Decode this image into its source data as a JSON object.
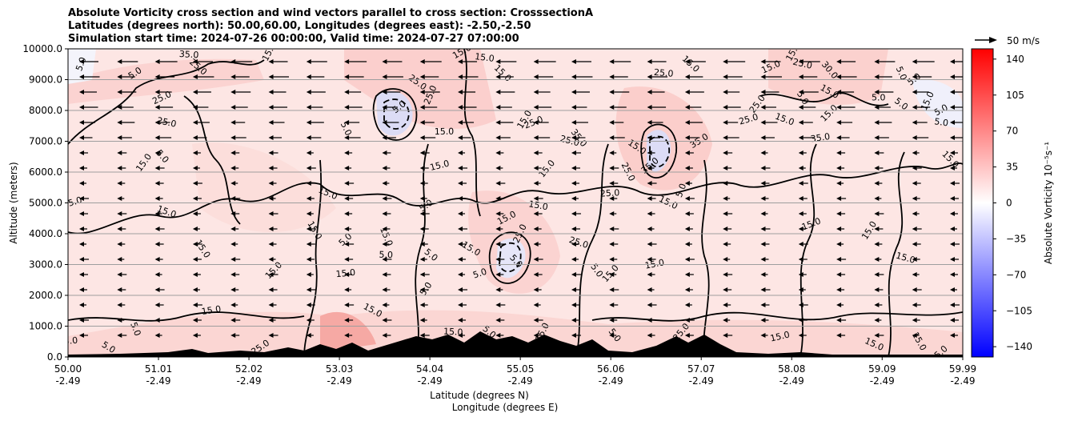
{
  "chart_data": {
    "type": "heatmap",
    "title_lines": [
      "Absolute Vorticity cross section and wind vectors parallel to cross section: CrosssectionA",
      "Latitudes (degrees north): 50.00,60.00, Longitudes (degrees east): -2.50,-2.50",
      "Simulation start time: 2024-07-26 00:00:00, Valid time: 2024-07-27 07:00:00"
    ],
    "ylabel": "Altitude (meters)",
    "xlabel_line1": "Latitude (degrees N)",
    "xlabel_line2": "Longitude (degrees E)",
    "ylim": [
      0,
      10000
    ],
    "yticks": [
      "0.0",
      "1000.0",
      "2000.0",
      "3000.0",
      "4000.0",
      "5000.0",
      "6000.0",
      "7000.0",
      "8000.0",
      "9000.0",
      "10000.0"
    ],
    "ytick_values": [
      0,
      1000,
      2000,
      3000,
      4000,
      5000,
      6000,
      7000,
      8000,
      9000,
      10000
    ],
    "xlim": [
      50.0,
      59.99
    ],
    "xticks": [
      {
        "value": 50.0,
        "lat": "50.00",
        "lon": "-2.49"
      },
      {
        "value": 51.01,
        "lat": "51.01",
        "lon": "-2.49"
      },
      {
        "value": 52.02,
        "lat": "52.02",
        "lon": "-2.49"
      },
      {
        "value": 53.03,
        "lat": "53.03",
        "lon": "-2.49"
      },
      {
        "value": 54.04,
        "lat": "54.04",
        "lon": "-2.49"
      },
      {
        "value": 55.05,
        "lat": "55.05",
        "lon": "-2.49"
      },
      {
        "value": 56.06,
        "lat": "56.06",
        "lon": "-2.49"
      },
      {
        "value": 57.07,
        "lat": "57.07",
        "lon": "-2.49"
      },
      {
        "value": 58.08,
        "lat": "58.08",
        "lon": "-2.49"
      },
      {
        "value": 59.09,
        "lat": "59.09",
        "lon": "-2.49"
      },
      {
        "value": 59.99,
        "lat": "59.99",
        "lon": "-2.49"
      }
    ],
    "grid": "horizontal",
    "colorbar": {
      "label": "Absolute Vorticity 10⁻⁵s⁻¹",
      "range": [
        -150,
        150
      ],
      "ticks": [
        "140",
        "105",
        "70",
        "35",
        "0",
        "−35",
        "−70",
        "−105",
        "−140"
      ],
      "tick_values": [
        140,
        105,
        70,
        35,
        0,
        -35,
        -70,
        -105,
        -140
      ],
      "low_color": "#0000ff",
      "mid_color": "#ffffff",
      "high_color": "#ff0000"
    },
    "quiver_key": "50 m/s",
    "contour_labels": [
      {
        "text": "5.0",
        "x": 50.15,
        "y": 9500
      },
      {
        "text": "5.0",
        "x": 50.75,
        "y": 9200
      },
      {
        "text": "35.0",
        "x": 51.35,
        "y": 9800
      },
      {
        "text": "25.0",
        "x": 51.45,
        "y": 9400
      },
      {
        "text": "15.0",
        "x": 52.25,
        "y": 9900
      },
      {
        "text": "25.0",
        "x": 51.05,
        "y": 8400
      },
      {
        "text": "25.0",
        "x": 51.1,
        "y": 7600
      },
      {
        "text": "5.0",
        "x": 51.05,
        "y": 6500
      },
      {
        "text": "15.0",
        "x": 50.85,
        "y": 6300
      },
      {
        "text": "15.0",
        "x": 50.05,
        "y": 5000
      },
      {
        "text": "15.0",
        "x": 51.1,
        "y": 4700
      },
      {
        "text": "15.0",
        "x": 51.5,
        "y": 3500
      },
      {
        "text": "15.0",
        "x": 52.3,
        "y": 2800
      },
      {
        "text": "15.0",
        "x": 51.6,
        "y": 1500
      },
      {
        "text": "15.0",
        "x": 53.4,
        "y": 1500
      },
      {
        "text": "5.0",
        "x": 53.1,
        "y": 7400
      },
      {
        "text": "5.0",
        "x": 53.7,
        "y": 8100
      },
      {
        "text": "15.0",
        "x": 54.2,
        "y": 7300
      },
      {
        "text": "25.0",
        "x": 53.9,
        "y": 8900
      },
      {
        "text": "25.0",
        "x": 54.05,
        "y": 8500
      },
      {
        "text": "15.0",
        "x": 54.4,
        "y": 9900
      },
      {
        "text": "15.0",
        "x": 54.65,
        "y": 9700
      },
      {
        "text": "15.0",
        "x": 54.85,
        "y": 9200
      },
      {
        "text": "15.0",
        "x": 55.1,
        "y": 7700
      },
      {
        "text": "25.0",
        "x": 55.2,
        "y": 7600
      },
      {
        "text": "25.0",
        "x": 55.6,
        "y": 7000
      },
      {
        "text": "35.0",
        "x": 55.7,
        "y": 7100
      },
      {
        "text": "15.0",
        "x": 55.35,
        "y": 6100
      },
      {
        "text": "15.0",
        "x": 54.15,
        "y": 6200
      },
      {
        "text": "15.0",
        "x": 52.9,
        "y": 5300
      },
      {
        "text": "15.0",
        "x": 52.75,
        "y": 4100
      },
      {
        "text": "5.0",
        "x": 53.1,
        "y": 3800
      },
      {
        "text": "15.0",
        "x": 53.1,
        "y": 2700
      },
      {
        "text": "15.0",
        "x": 54.5,
        "y": 3500
      },
      {
        "text": "15.0",
        "x": 53.55,
        "y": 3900
      },
      {
        "text": "5.0",
        "x": 54.0,
        "y": 4900
      },
      {
        "text": "5.0",
        "x": 53.55,
        "y": 3300
      },
      {
        "text": "5.0",
        "x": 54.05,
        "y": 3300
      },
      {
        "text": "25.0",
        "x": 55.05,
        "y": 4000
      },
      {
        "text": "15.0",
        "x": 54.9,
        "y": 4500
      },
      {
        "text": "15.0",
        "x": 55.25,
        "y": 4900
      },
      {
        "text": "5.0",
        "x": 55.0,
        "y": 3100
      },
      {
        "text": "5.0",
        "x": 54.0,
        "y": 2200
      },
      {
        "text": "5.0",
        "x": 54.6,
        "y": 2700
      },
      {
        "text": "25.0",
        "x": 55.7,
        "y": 3700
      },
      {
        "text": "5.0",
        "x": 55.9,
        "y": 2800
      },
      {
        "text": "15.0",
        "x": 56.06,
        "y": 2700
      },
      {
        "text": "15.0",
        "x": 56.55,
        "y": 3000
      },
      {
        "text": "15.0",
        "x": 56.7,
        "y": 5000
      },
      {
        "text": "25.0",
        "x": 56.25,
        "y": 6000
      },
      {
        "text": "35.0",
        "x": 56.5,
        "y": 6200
      },
      {
        "text": "25.0",
        "x": 56.05,
        "y": 5300
      },
      {
        "text": "15.0",
        "x": 56.35,
        "y": 6800
      },
      {
        "text": "5.0",
        "x": 56.85,
        "y": 5400
      },
      {
        "text": "35.0",
        "x": 57.05,
        "y": 7000
      },
      {
        "text": "25.0",
        "x": 56.65,
        "y": 9200
      },
      {
        "text": "15.0",
        "x": 56.95,
        "y": 9500
      },
      {
        "text": "15.0",
        "x": 58.1,
        "y": 9900
      },
      {
        "text": "15.0",
        "x": 57.85,
        "y": 9400
      },
      {
        "text": "25.0",
        "x": 58.2,
        "y": 9500
      },
      {
        "text": "30.0",
        "x": 58.5,
        "y": 9300
      },
      {
        "text": "25.0",
        "x": 57.7,
        "y": 8200
      },
      {
        "text": "25.0",
        "x": 57.6,
        "y": 7700
      },
      {
        "text": "15.0",
        "x": 58.0,
        "y": 7700
      },
      {
        "text": "5.0",
        "x": 58.2,
        "y": 8400
      },
      {
        "text": "15.0",
        "x": 58.5,
        "y": 7900
      },
      {
        "text": "35.0",
        "x": 58.4,
        "y": 7100
      },
      {
        "text": "15.0",
        "x": 58.5,
        "y": 8600
      },
      {
        "text": "5.0",
        "x": 59.3,
        "y": 9200
      },
      {
        "text": "5.0",
        "x": 59.45,
        "y": 9000
      },
      {
        "text": "5.0",
        "x": 59.05,
        "y": 8400
      },
      {
        "text": "5.0",
        "x": 59.3,
        "y": 8200
      },
      {
        "text": "15.0",
        "x": 59.6,
        "y": 8300
      },
      {
        "text": "5.0",
        "x": 59.75,
        "y": 8000
      },
      {
        "text": "5.0",
        "x": 59.75,
        "y": 7600
      },
      {
        "text": "15.0",
        "x": 59.85,
        "y": 6400
      },
      {
        "text": "15.0",
        "x": 58.95,
        "y": 4100
      },
      {
        "text": "15.0",
        "x": 58.3,
        "y": 4300
      },
      {
        "text": "15.0",
        "x": 59.35,
        "y": 3200
      },
      {
        "text": "5.0",
        "x": 56.1,
        "y": 700
      },
      {
        "text": "25.0",
        "x": 56.85,
        "y": 800
      },
      {
        "text": "15.0",
        "x": 57.95,
        "y": 650
      },
      {
        "text": "15.0",
        "x": 59.0,
        "y": 400
      },
      {
        "text": "15.0",
        "x": 59.5,
        "y": 500
      },
      {
        "text": "5.0",
        "x": 59.75,
        "y": 150
      },
      {
        "text": "15.0",
        "x": 50.0,
        "y": 500
      },
      {
        "text": "5.0",
        "x": 50.45,
        "y": 300
      },
      {
        "text": "5.0",
        "x": 50.75,
        "y": 900
      },
      {
        "text": "25.0",
        "x": 52.15,
        "y": 300
      },
      {
        "text": "15.0",
        "x": 54.3,
        "y": 800
      },
      {
        "text": "5.0",
        "x": 54.7,
        "y": 800
      },
      {
        "text": "15.0",
        "x": 55.3,
        "y": 800
      },
      {
        "text": "5.0",
        "x": 55.2,
        "y": 400
      }
    ]
  }
}
